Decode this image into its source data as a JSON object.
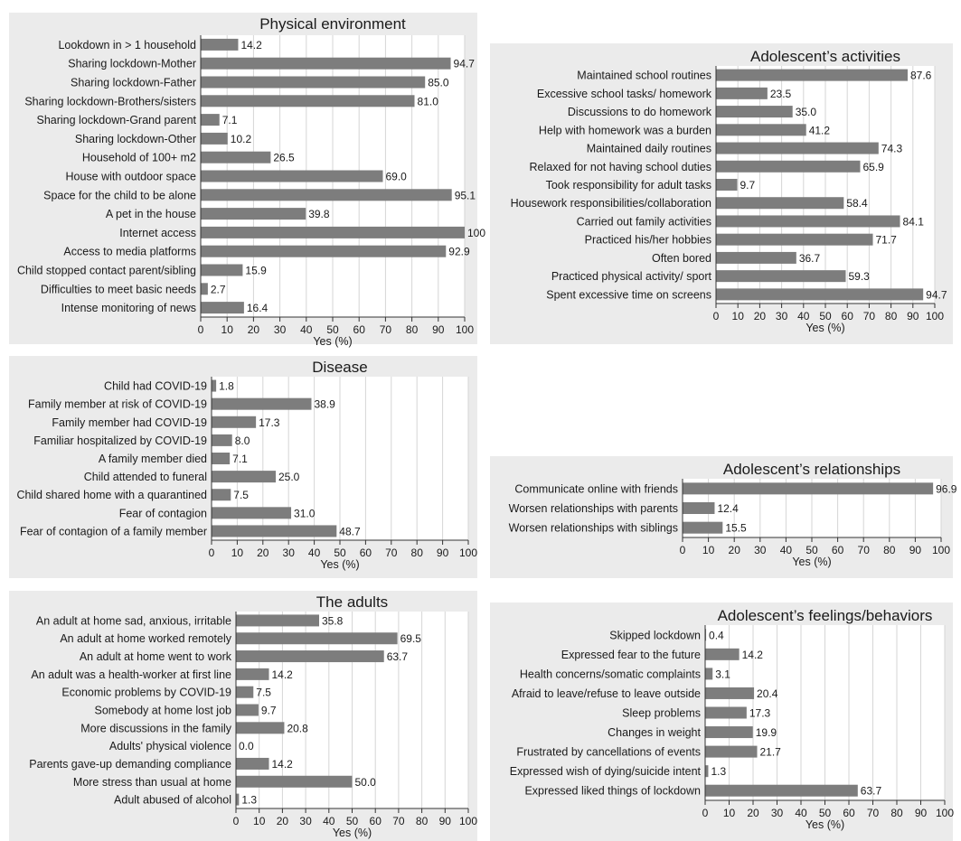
{
  "colors": {
    "bar": "#7d7d7d",
    "plot_bg": "#ffffff",
    "panel_bg": "#ebebeb",
    "grid": "#d6d6d6",
    "text": "#1a1a1a"
  },
  "chart_data": [
    {
      "id": "physical",
      "type": "bar",
      "orientation": "horizontal",
      "title": "Physical environment",
      "xlabel": "Yes (%)",
      "xlim": [
        0,
        100
      ],
      "xticks": [
        0,
        10,
        20,
        30,
        40,
        50,
        60,
        70,
        80,
        90,
        100
      ],
      "grid": true,
      "categories": [
        "Lookdown in > 1 household",
        "Sharing lockdown-Mother",
        "Sharing lockdown-Father",
        "Sharing lockdown-Brothers/sisters",
        "Sharing lockdown-Grand parent",
        "Sharing lockdown-Other",
        "Household of 100+ m2",
        "House with outdoor space",
        "Space for the child to be alone",
        "A pet in the house",
        "Internet access",
        "Access to media platforms",
        "Child stopped contact parent/sibling",
        "Difficulties to meet basic needs",
        "Intense monitoring of news"
      ],
      "values": [
        14.2,
        94.7,
        85.0,
        81.0,
        7.1,
        10.2,
        26.5,
        69.0,
        95.1,
        39.8,
        100,
        92.9,
        15.9,
        2.7,
        16.4
      ],
      "value_labels": [
        "14.2",
        "94.7",
        "85.0",
        "81.0",
        "7.1",
        "10.2",
        "26.5",
        "69.0",
        "95.1",
        "39.8",
        "100",
        "92.9",
        "15.9",
        "2.7",
        "16.4"
      ]
    },
    {
      "id": "activities",
      "type": "bar",
      "orientation": "horizontal",
      "title": "Adolescent’s activities",
      "xlabel": "Yes (%)",
      "xlim": [
        0,
        100
      ],
      "xticks": [
        0,
        10,
        20,
        30,
        40,
        50,
        60,
        70,
        80,
        90,
        100
      ],
      "grid": true,
      "categories": [
        "Maintained school routines",
        "Excessive school tasks/ homework",
        "Discussions to do homework",
        "Help with homework was a burden",
        "Maintained daily routines",
        "Relaxed for not having school duties",
        "Took responsibility for adult tasks",
        "Housework responsibilities/collaboration",
        "Carried out family activities",
        "Practiced his/her hobbies",
        "Often bored",
        "Practiced physical activity/ sport",
        "Spent excessive time on screens"
      ],
      "values": [
        87.6,
        23.5,
        35.0,
        41.2,
        74.3,
        65.9,
        9.7,
        58.4,
        84.1,
        71.7,
        36.7,
        59.3,
        94.7
      ],
      "value_labels": [
        "87.6",
        "23.5",
        "35.0",
        "41.2",
        "74.3",
        "65.9",
        "9.7",
        "58.4",
        "84.1",
        "71.7",
        "36.7",
        "59.3",
        "94.7"
      ]
    },
    {
      "id": "disease",
      "type": "bar",
      "orientation": "horizontal",
      "title": "Disease",
      "xlabel": "Yes (%)",
      "xlim": [
        0,
        100
      ],
      "xticks": [
        0,
        10,
        20,
        30,
        40,
        50,
        60,
        70,
        80,
        90,
        100
      ],
      "grid": true,
      "categories": [
        "Child had COVID-19",
        "Family member at risk of COVID-19",
        "Family member had COVID-19",
        "Familiar hospitalized by COVID-19",
        "A family member died",
        "Child attended to funeral",
        "Child shared home with a quarantined",
        "Fear of contagion",
        "Fear of contagion of a family member"
      ],
      "values": [
        1.8,
        38.9,
        17.3,
        8.0,
        7.1,
        25.0,
        7.5,
        31.0,
        48.7
      ],
      "value_labels": [
        "1.8",
        "38.9",
        "17.3",
        "8.0",
        "7.1",
        "25.0",
        "7.5",
        "31.0",
        "48.7"
      ]
    },
    {
      "id": "relationships",
      "type": "bar",
      "orientation": "horizontal",
      "title": "Adolescent’s relationships",
      "xlabel": "Yes (%)",
      "xlim": [
        0,
        100
      ],
      "xticks": [
        0,
        10,
        20,
        30,
        40,
        50,
        60,
        70,
        80,
        90,
        100
      ],
      "grid": true,
      "categories": [
        "Communicate online with friends",
        "Worsen relationships with parents",
        "Worsen relationships with siblings"
      ],
      "values": [
        96.9,
        12.4,
        15.5
      ],
      "value_labels": [
        "96.9",
        "12.4",
        "15.5"
      ]
    },
    {
      "id": "adults",
      "type": "bar",
      "orientation": "horizontal",
      "title": "The adults",
      "xlabel": "Yes (%)",
      "xlim": [
        0,
        100
      ],
      "xticks": [
        0,
        10,
        20,
        30,
        40,
        50,
        60,
        70,
        80,
        90,
        100
      ],
      "grid": true,
      "categories": [
        "An adult at home sad, anxious, irritable",
        "An adult at home worked remotely",
        "An adult at home went to work",
        "An adult was a health-worker at first line",
        "Economic problems by COVID-19",
        "Somebody at home lost job",
        "More discussions in the family",
        "Adults' physical violence",
        "Parents gave-up demanding compliance",
        "More stress than usual at home",
        "Adult abused of alcohol"
      ],
      "values": [
        35.8,
        69.5,
        63.7,
        14.2,
        7.5,
        9.7,
        20.8,
        0.0,
        14.2,
        50.0,
        1.3
      ],
      "value_labels": [
        "35.8",
        "69.5",
        "63.7",
        "14.2",
        "7.5",
        "9.7",
        "20.8",
        "0.0",
        "14.2",
        "50.0",
        "1.3"
      ]
    },
    {
      "id": "feelings",
      "type": "bar",
      "orientation": "horizontal",
      "title": "Adolescent’s feelings/behaviors",
      "xlabel": "Yes (%)",
      "xlim": [
        0,
        100
      ],
      "xticks": [
        0,
        10,
        20,
        30,
        40,
        50,
        60,
        70,
        80,
        90,
        100
      ],
      "grid": true,
      "categories": [
        "Skipped lockdown",
        "Expressed fear to the future",
        "Health concerns/somatic complaints",
        "Afraid to leave/refuse to leave outside",
        "Sleep problems",
        "Changes in weight",
        "Frustrated by cancellations of events",
        "Expressed wish of dying/suicide intent",
        "Expressed liked things of lockdown"
      ],
      "values": [
        0.4,
        14.2,
        3.1,
        20.4,
        17.3,
        19.9,
        21.7,
        1.3,
        63.7
      ],
      "value_labels": [
        "0.4",
        "14.2",
        "3.1",
        "20.4",
        "17.3",
        "19.9",
        "21.7",
        "1.3",
        "63.7"
      ]
    }
  ]
}
